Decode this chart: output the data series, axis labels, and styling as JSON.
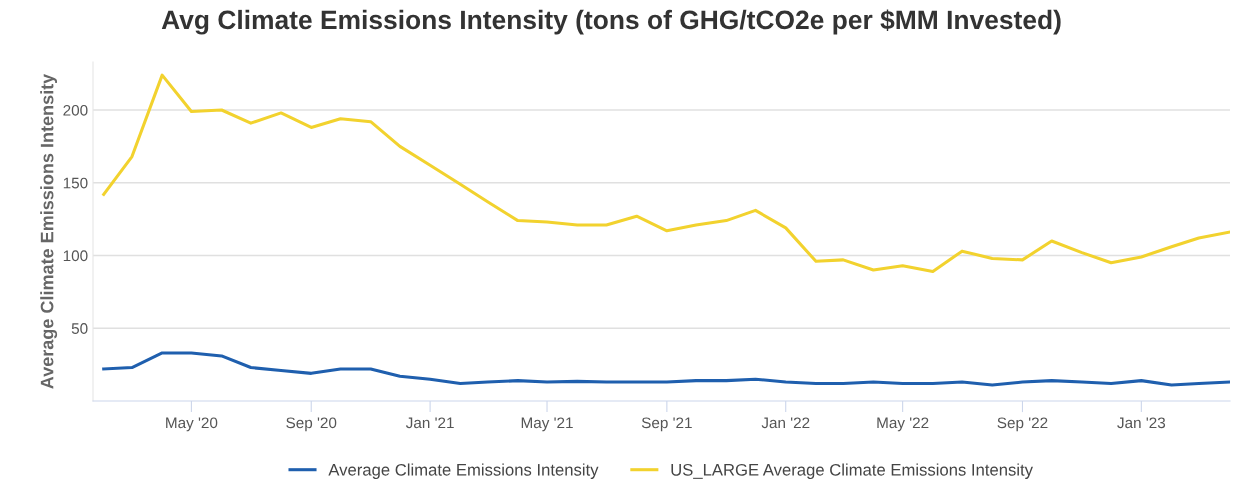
{
  "chart_data": {
    "type": "line",
    "title": "Avg Climate Emissions Intensity (tons of GHG/tCO2e per $MM Invested)",
    "ylabel": "Average Climate Emissions Intensity",
    "x": [
      "2020-02",
      "2020-03",
      "2020-04",
      "2020-05",
      "2020-06",
      "2020-07",
      "2020-08",
      "2020-09",
      "2020-10",
      "2020-11",
      "2020-12",
      "2021-01",
      "2021-02",
      "2021-03",
      "2021-04",
      "2021-05",
      "2021-06",
      "2021-07",
      "2021-08",
      "2021-09",
      "2021-10",
      "2021-11",
      "2021-12",
      "2022-01",
      "2022-02",
      "2022-03",
      "2022-04",
      "2022-05",
      "2022-06",
      "2022-07",
      "2022-08",
      "2022-09",
      "2022-10",
      "2022-11",
      "2022-12",
      "2023-01",
      "2023-02",
      "2023-03",
      "2023-04"
    ],
    "series": [
      {
        "name": "Average Climate Emissions Intensity",
        "color": "#1f5fae",
        "values": [
          22,
          23,
          33,
          33,
          31,
          23,
          21,
          19,
          22,
          22,
          17,
          15,
          12,
          13,
          14,
          13,
          13.5,
          13,
          13,
          13,
          14,
          14,
          15,
          13,
          12,
          12,
          13,
          12,
          12,
          13,
          11,
          13,
          14,
          13,
          12,
          14,
          11,
          12,
          13
        ]
      },
      {
        "name": "US_LARGE Average Climate Emissions Intensity",
        "color": "#f2d22e",
        "values": [
          142,
          168,
          224,
          199,
          200,
          191,
          198,
          188,
          194,
          192,
          175,
          162,
          149,
          137,
          124,
          123,
          121,
          121,
          127,
          117,
          121,
          124,
          131,
          119,
          96,
          97,
          90,
          93,
          89,
          103,
          98,
          97,
          110,
          102,
          95,
          99,
          106,
          112,
          116
        ]
      }
    ],
    "xlim": [
      "2020-01-21",
      "2023-04-02"
    ],
    "xticks": [
      {
        "value": "2020-05-01",
        "label": "May '20"
      },
      {
        "value": "2020-09-01",
        "label": "Sep '20"
      },
      {
        "value": "2021-01-01",
        "label": "Jan '21"
      },
      {
        "value": "2021-05-01",
        "label": "May '21"
      },
      {
        "value": "2021-09-01",
        "label": "Sep '21"
      },
      {
        "value": "2022-01-01",
        "label": "Jan '22"
      },
      {
        "value": "2022-05-01",
        "label": "May '22"
      },
      {
        "value": "2022-09-01",
        "label": "Sep '22"
      },
      {
        "value": "2023-01-01",
        "label": "Jan '23"
      }
    ],
    "ylim": [
      0,
      233
    ],
    "yticks": [
      50,
      100,
      150,
      200
    ],
    "grid": "y",
    "legend": "bottom",
    "marker": "none",
    "line_style": "solid"
  }
}
